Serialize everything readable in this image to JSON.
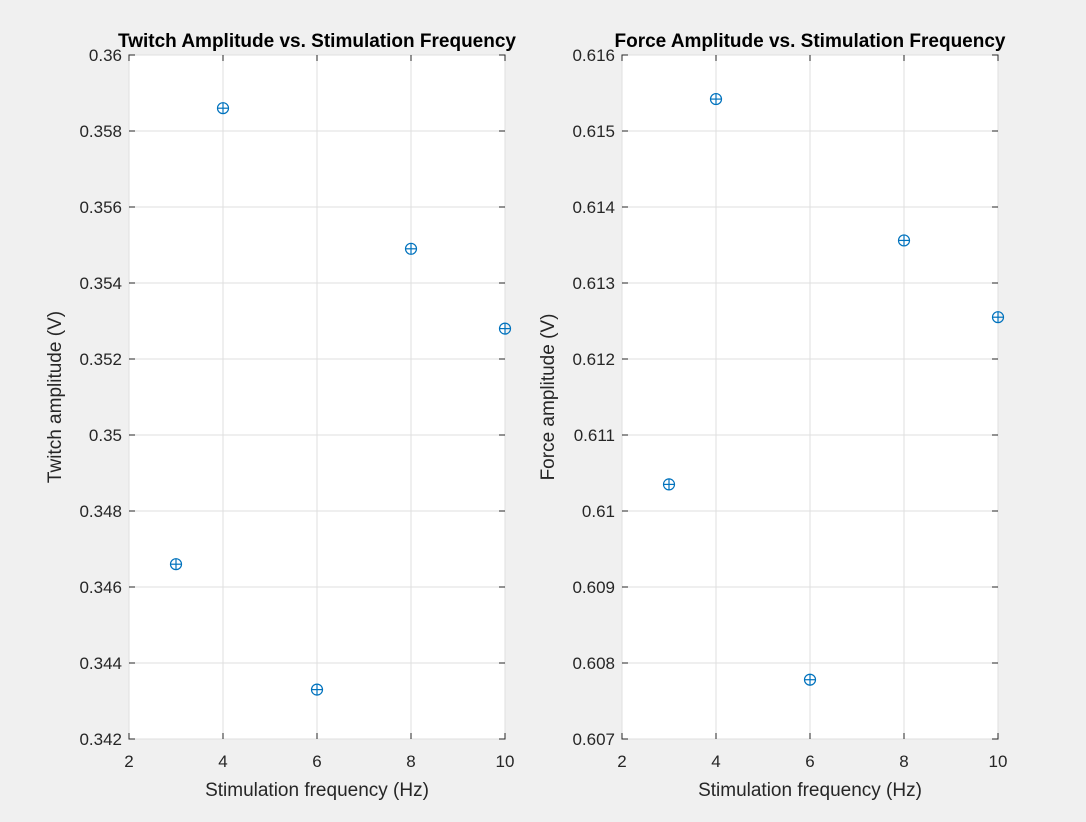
{
  "figure": {
    "background": "#f0f0f0",
    "marker_color": "#0072bd"
  },
  "chart_data": [
    {
      "type": "scatter",
      "title": "Twitch Amplitude vs. Stimulation Frequency",
      "xlabel": "Stimulation frequency (Hz)",
      "ylabel": "Twitch amplitude (V)",
      "xlim": [
        2,
        10
      ],
      "ylim": [
        0.342,
        0.36
      ],
      "xticks": [
        2,
        4,
        6,
        8,
        10
      ],
      "xtick_labels": [
        "2",
        "4",
        "6",
        "8",
        "10"
      ],
      "yticks": [
        0.342,
        0.344,
        0.346,
        0.348,
        0.35,
        0.352,
        0.354,
        0.356,
        0.358,
        0.36
      ],
      "ytick_labels": [
        "0.342",
        "0.344",
        "0.346",
        "0.348",
        "0.35",
        "0.352",
        "0.354",
        "0.356",
        "0.358",
        "0.36"
      ],
      "grid": true,
      "marker": "circle-plus",
      "x": [
        3,
        4,
        6,
        8,
        10
      ],
      "y": [
        0.3466,
        0.3586,
        0.3433,
        0.3549,
        0.3528
      ]
    },
    {
      "type": "scatter",
      "title": "Force Amplitude vs. Stimulation Frequency",
      "xlabel": "Stimulation frequency (Hz)",
      "ylabel": "Force amplitude (V)",
      "xlim": [
        2,
        10
      ],
      "ylim": [
        0.607,
        0.616
      ],
      "xticks": [
        2,
        4,
        6,
        8,
        10
      ],
      "xtick_labels": [
        "2",
        "4",
        "6",
        "8",
        "10"
      ],
      "yticks": [
        0.607,
        0.608,
        0.609,
        0.61,
        0.611,
        0.612,
        0.613,
        0.614,
        0.615,
        0.616
      ],
      "ytick_labels": [
        "0.607",
        "0.608",
        "0.609",
        "0.61",
        "0.611",
        "0.612",
        "0.613",
        "0.614",
        "0.615",
        "0.616"
      ],
      "grid": true,
      "marker": "circle-plus",
      "x": [
        3,
        4,
        6,
        8,
        10
      ],
      "y": [
        0.61035,
        0.61542,
        0.60778,
        0.61356,
        0.61255
      ]
    }
  ]
}
